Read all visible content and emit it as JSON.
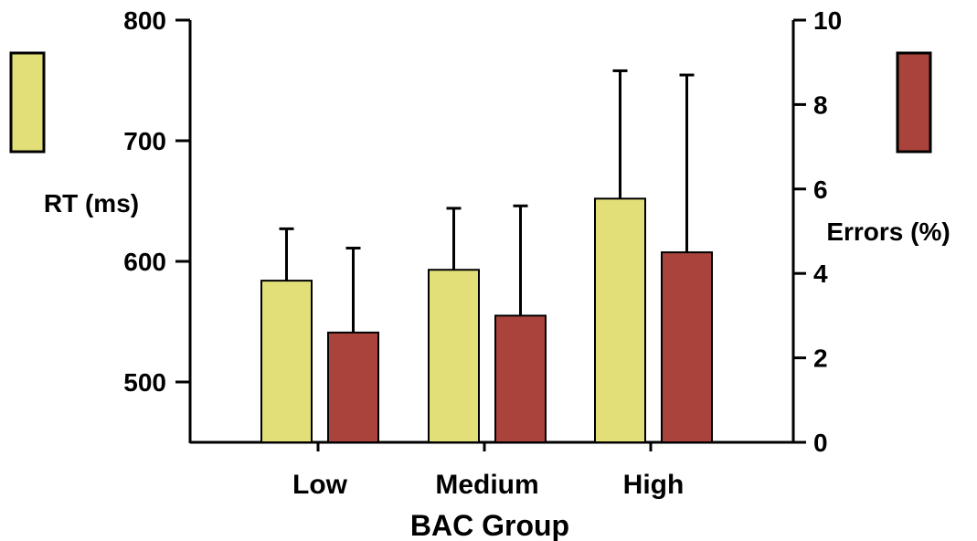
{
  "colors": {
    "rt": "#E2DF78",
    "errors": "#A9433C",
    "outline": "#000000"
  },
  "chart_data": {
    "type": "bar",
    "title": "",
    "xlabel": "BAC Group",
    "categories": [
      "Low",
      "Medium",
      "High"
    ],
    "y_left": {
      "label": "RT (ms)",
      "range": [
        450,
        800
      ],
      "ticks": [
        500,
        600,
        700,
        800
      ]
    },
    "y_right": {
      "label": "Errors (%)",
      "range": [
        0,
        10
      ],
      "ticks": [
        0,
        2,
        4,
        6,
        8,
        10
      ]
    },
    "series": [
      {
        "name": "RT (ms)",
        "axis": "left",
        "color": "#E2DF78",
        "values": [
          584,
          593,
          652
        ],
        "error_upper": [
          627,
          644,
          758
        ]
      },
      {
        "name": "Errors (%)",
        "axis": "right",
        "color": "#A9433C",
        "values": [
          2.6,
          3.0,
          4.5
        ],
        "error_upper": [
          4.6,
          5.6,
          8.7
        ]
      }
    ],
    "legend": "swatches at left (RT) and right (Errors)",
    "grid": false
  }
}
